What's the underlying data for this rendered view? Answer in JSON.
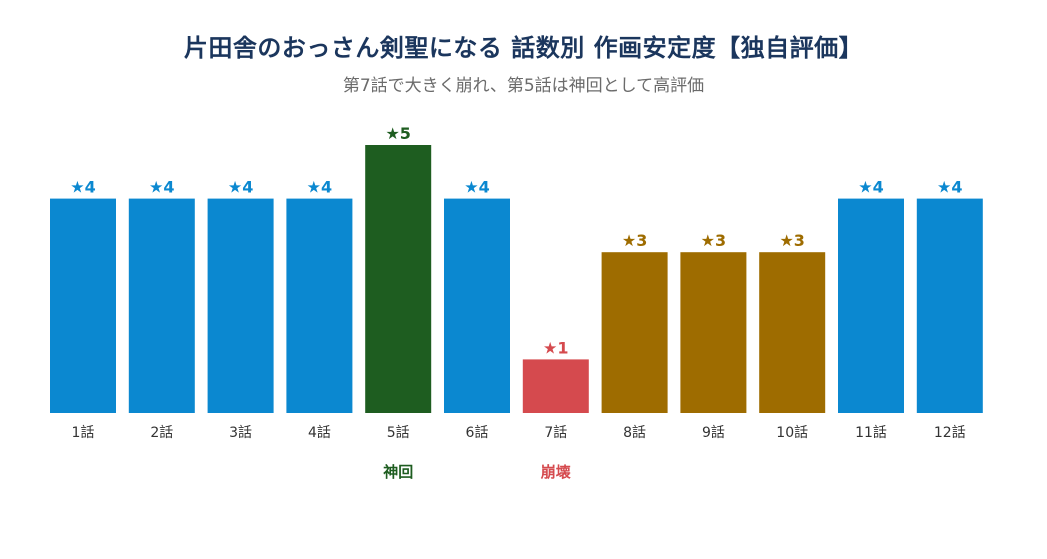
{
  "title": "片田舎のおっさん剣聖になる 話数別 作画安定度【独自評価】",
  "subtitle": "第7話で大きく崩れ、第5話は神回として高評価",
  "colors": {
    "normal": "#0b88d0",
    "best": "#1e5d20",
    "worst": "#d54a4e",
    "mid": "#9e6c00"
  },
  "chart_data": {
    "type": "bar",
    "title": "片田舎のおっさん剣聖になる 話数別 作画安定度【独自評価】",
    "subtitle": "第7話で大きく崩れ、第5話は神回として高評価",
    "xlabel": "",
    "ylabel": "",
    "ylim": [
      0,
      5
    ],
    "grid": false,
    "categories": [
      "1話",
      "2話",
      "3話",
      "4話",
      "5話",
      "6話",
      "7話",
      "8話",
      "9話",
      "10話",
      "11話",
      "12話"
    ],
    "values": [
      4,
      4,
      4,
      4,
      5,
      4,
      1,
      3,
      3,
      3,
      4,
      4
    ],
    "data_labels": [
      "★4",
      "★4",
      "★4",
      "★4",
      "★5",
      "★4",
      "★1",
      "★3",
      "★3",
      "★3",
      "★4",
      "★4"
    ],
    "annotations": [
      {
        "category": "5話",
        "text": "神回",
        "color": "#1e5d20"
      },
      {
        "category": "7話",
        "text": "崩壊",
        "color": "#d54a4e"
      }
    ]
  }
}
